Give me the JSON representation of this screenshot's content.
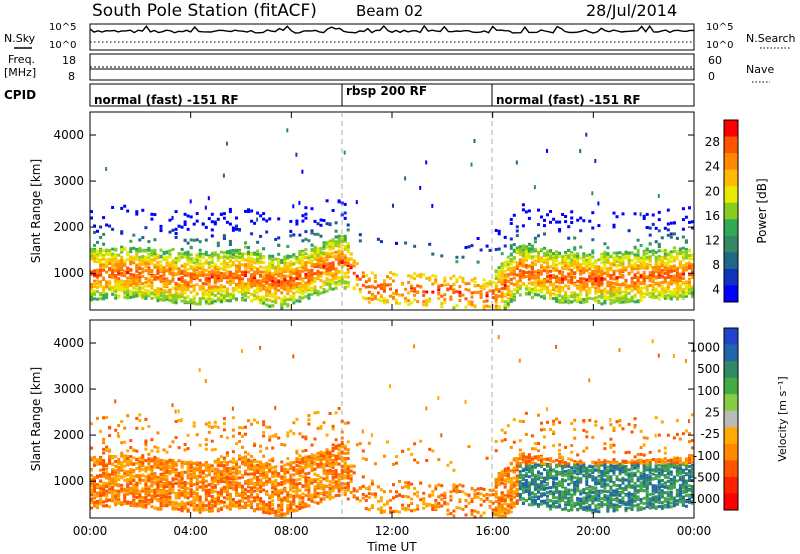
{
  "header": {
    "station_title": "South Pole Station (fitACF)",
    "beam": "Beam 02",
    "date": "28/Jul/2014"
  },
  "panel_labels": {
    "nsky": "N.Sky",
    "nsearch": "N.Search",
    "freq_line1": "Freq.",
    "freq_line2": "[MHz]",
    "nave": "Nave",
    "cpid": "CPID"
  },
  "noise_axis": {
    "left_ticks": [
      "10^5",
      "10^0"
    ],
    "right_ticks": [
      "10^5",
      "10^0"
    ]
  },
  "freq_axis": {
    "left_ticks": [
      "18",
      "8"
    ],
    "right_ticks": [
      "60",
      "0"
    ]
  },
  "cpid_segments": [
    {
      "label": "normal (fast) -151 RF",
      "start": 0,
      "end": 10
    },
    {
      "label": "rbsp 200 RF",
      "start": 10,
      "end": 16
    },
    {
      "label": "normal (fast) -151 RF",
      "start": 16,
      "end": 24
    }
  ],
  "chart_data": [
    {
      "type": "heatmap",
      "name": "power",
      "ylabel": "Slant Range [km]",
      "ylim": [
        200,
        4500
      ],
      "y_ticks": [
        "1000",
        "2000",
        "3000",
        "4000"
      ],
      "colorbar_label": "Power [dB]",
      "colorbar_ticks": [
        "28",
        "24",
        "20",
        "16",
        "12",
        "8",
        "4"
      ],
      "colorbar_colors": [
        "#ff0000",
        "#ff5500",
        "#ff8800",
        "#ffbb00",
        "#e8e800",
        "#88cc22",
        "#33aa55",
        "#338866",
        "#226688",
        "#1133bb",
        "#0000ff"
      ],
      "echo_bands": [
        {
          "x": [
            0,
            1.5,
            3,
            4.5,
            6,
            7.5,
            9,
            10,
            11,
            12.5,
            14,
            15.5,
            16,
            17,
            18.5,
            20,
            21.5,
            23,
            24
          ],
          "y": [
            1000,
            1050,
            950,
            900,
            1000,
            800,
            1100,
            1300,
            700,
            700,
            650,
            550,
            500,
            1100,
            950,
            900,
            950,
            1000,
            1050
          ]
        }
      ]
    },
    {
      "type": "heatmap",
      "name": "velocity",
      "ylabel": "Slant Range [km]",
      "ylim": [
        200,
        4500
      ],
      "y_ticks": [
        "1000",
        "2000",
        "3000",
        "4000"
      ],
      "colorbar_label": "Velocity [m s⁻¹]",
      "colorbar_ticks": [
        "1000",
        "500",
        "100",
        "25",
        "-25",
        "-100",
        "-500",
        "-1000"
      ],
      "colorbar_colors": [
        "#2244cc",
        "#2266aa",
        "#338866",
        "#44aa44",
        "#88cc44",
        "#bbbbbb",
        "#ffaa00",
        "#ff8800",
        "#ff5500",
        "#ff2200",
        "#ff0000"
      ]
    }
  ],
  "x_axis": {
    "label": "Time UT",
    "ticks": [
      "00:00",
      "04:00",
      "08:00",
      "12:00",
      "16:00",
      "20:00",
      "00:00"
    ],
    "range_hours": [
      0,
      24
    ]
  },
  "colors": {
    "power_scale": [
      "#0000ff",
      "#1133bb",
      "#226688",
      "#338866",
      "#33aa55",
      "#88cc22",
      "#e8e800",
      "#ffbb00",
      "#ff8800",
      "#ff5500",
      "#ff0000"
    ],
    "velocity_scale": [
      "#ff0000",
      "#ff2200",
      "#ff5500",
      "#ff8800",
      "#ffaa00",
      "#bbbbbb",
      "#88cc44",
      "#44aa44",
      "#338866",
      "#2266aa",
      "#2244cc"
    ]
  }
}
